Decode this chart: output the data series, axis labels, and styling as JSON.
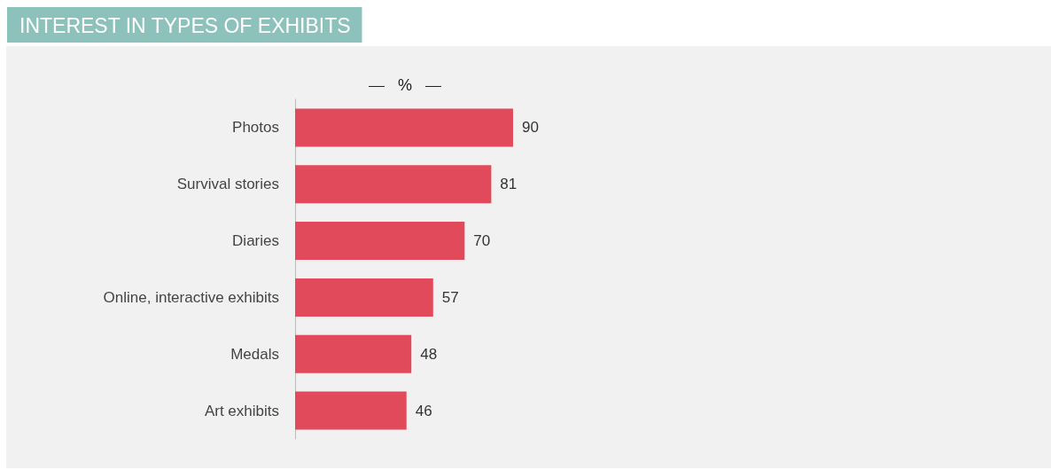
{
  "chart_data": {
    "type": "bar",
    "orientation": "horizontal",
    "title": "INTEREST IN TYPES OF EXHIBITS",
    "xlabel": "%",
    "categories": [
      "Photos",
      "Survival stories",
      "Diaries",
      "Online, interactive exhibits",
      "Medals",
      "Art exhibits"
    ],
    "values": [
      90,
      81,
      70,
      57,
      48,
      46
    ],
    "color": "#e04a5a",
    "data_labels": true
  }
}
